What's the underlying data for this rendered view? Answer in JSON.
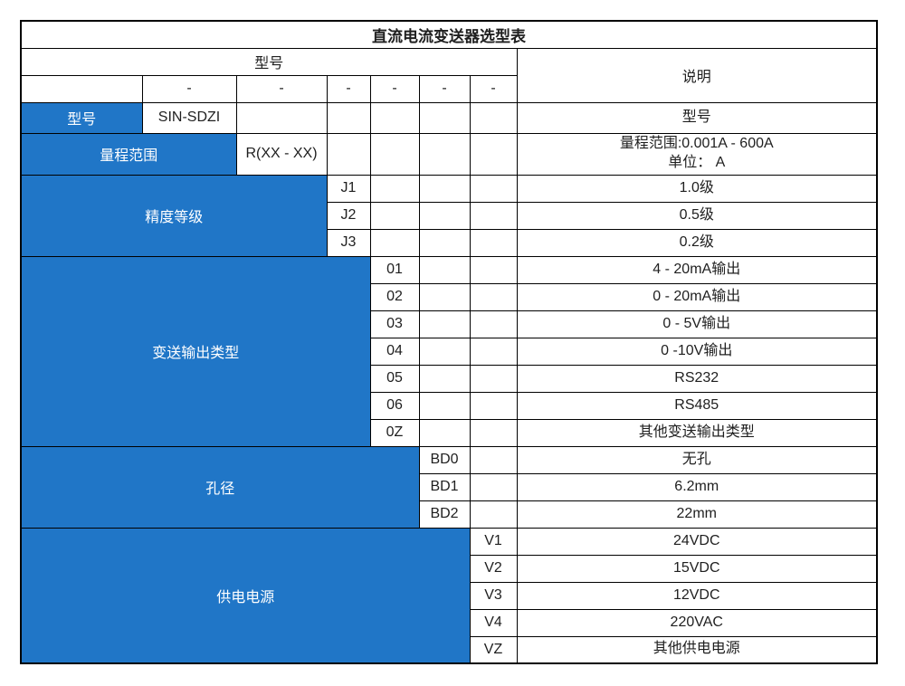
{
  "title": "直流电流变送器选型表",
  "header": {
    "model_group_label": "型号",
    "description_label": "说明",
    "dash": "-",
    "dash_count": 6
  },
  "groups": [
    {
      "key": "model",
      "label": "型号",
      "rows": [
        {
          "code": "SIN-SDZI",
          "desc": "型号"
        }
      ]
    },
    {
      "key": "range",
      "label": "量程范围",
      "rows": [
        {
          "code": "R(XX - XX)",
          "desc": [
            "量程范围:0.001A - 600A",
            "单位： A"
          ]
        }
      ]
    },
    {
      "key": "accuracy",
      "label": "精度等级",
      "rows": [
        {
          "code": "J1",
          "desc": "1.0级"
        },
        {
          "code": "J2",
          "desc": "0.5级"
        },
        {
          "code": "J3",
          "desc": "0.2级"
        }
      ]
    },
    {
      "key": "output-type",
      "label": "变送输出类型",
      "rows": [
        {
          "code": "01",
          "desc": "4 - 20mA输出"
        },
        {
          "code": "02",
          "desc": "0 - 20mA输出"
        },
        {
          "code": "03",
          "desc": "0 - 5V输出"
        },
        {
          "code": "04",
          "desc": "0 -10V输出"
        },
        {
          "code": "05",
          "desc": "RS232"
        },
        {
          "code": "06",
          "desc": "RS485"
        },
        {
          "code": "0Z",
          "desc": "其他变送输出类型"
        }
      ]
    },
    {
      "key": "aperture",
      "label": "孔径",
      "rows": [
        {
          "code": "BD0",
          "desc": "无孔"
        },
        {
          "code": "BD1",
          "desc": "6.2mm"
        },
        {
          "code": "BD2",
          "desc": "22mm"
        }
      ]
    },
    {
      "key": "power-supply",
      "label": "供电电源",
      "rows": [
        {
          "code": "V1",
          "desc": "24VDC"
        },
        {
          "code": "V2",
          "desc": "15VDC"
        },
        {
          "code": "V3",
          "desc": "12VDC"
        },
        {
          "code": "V4",
          "desc": "220VAC"
        },
        {
          "code": "VZ",
          "desc": "其他供电电源"
        }
      ]
    }
  ],
  "colors": {
    "accent_blue": "#2076C7",
    "border": "#000000",
    "blue_cell_text": "#FFFFFF",
    "text": "#1F1F1F"
  }
}
